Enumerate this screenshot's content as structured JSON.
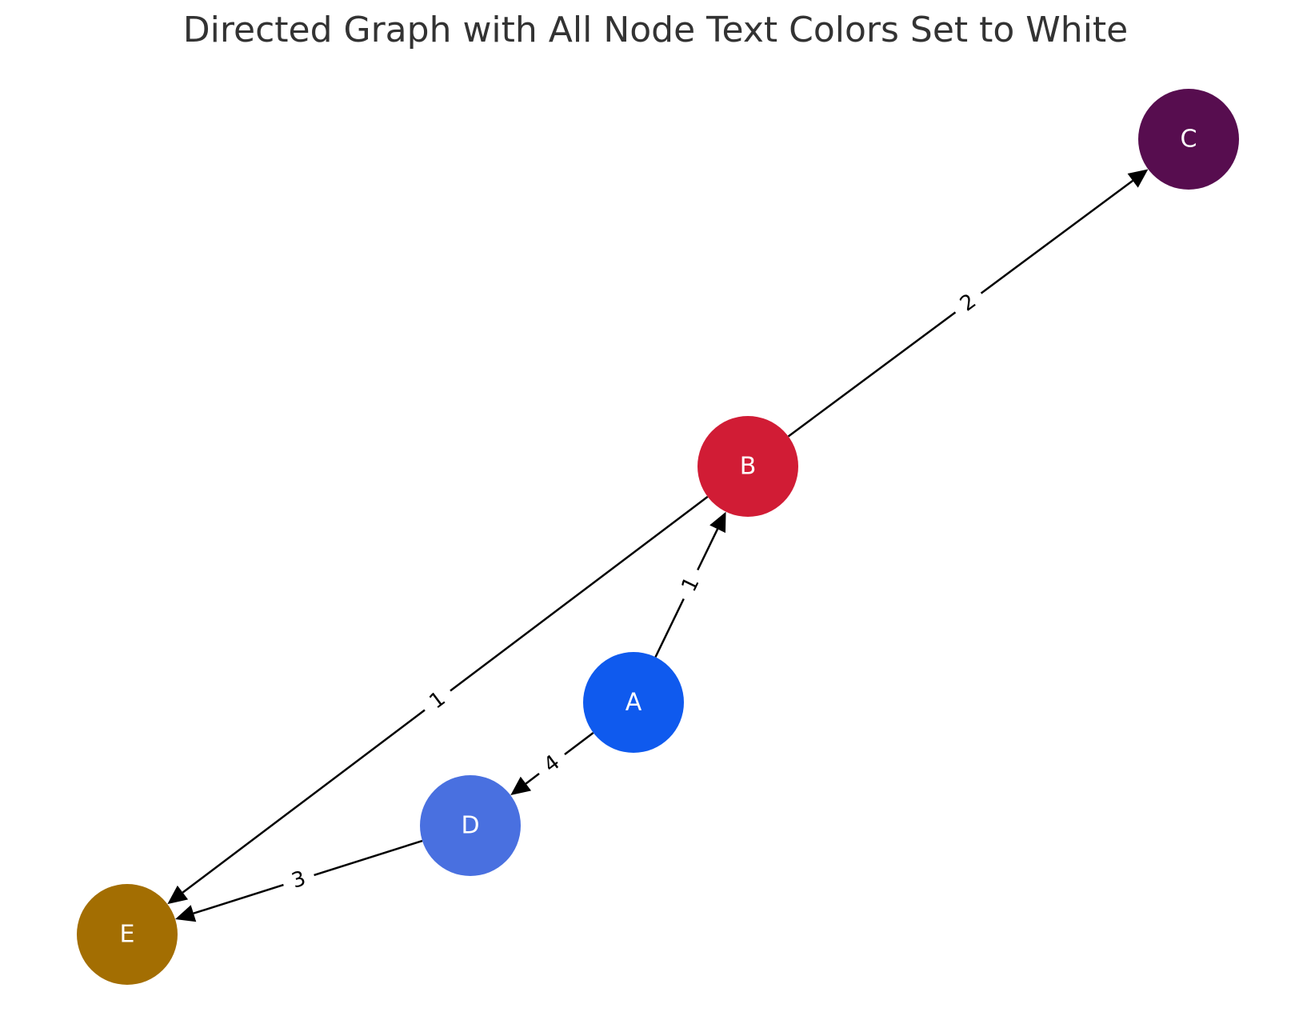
{
  "figure": {
    "title": "Directed Graph with All Node Text Colors Set to White"
  },
  "style": {
    "node_text_color": "#ffffff",
    "edge_color": "#000000",
    "background": "#ffffff"
  },
  "nodes": [
    {
      "id": "A",
      "label": "A",
      "color": "#0f5aee"
    },
    {
      "id": "B",
      "label": "B",
      "color": "#d11c35"
    },
    {
      "id": "C",
      "label": "C",
      "color": "#570d4f"
    },
    {
      "id": "D",
      "label": "D",
      "color": "#4970e0"
    },
    {
      "id": "E",
      "label": "E",
      "color": "#a36e02"
    }
  ],
  "edges": [
    {
      "source": "A",
      "target": "B",
      "weight": "1"
    },
    {
      "source": "A",
      "target": "D",
      "weight": "4"
    },
    {
      "source": "B",
      "target": "C",
      "weight": "2"
    },
    {
      "source": "B",
      "target": "E",
      "weight": "1"
    },
    {
      "source": "D",
      "target": "E",
      "weight": "3"
    }
  ]
}
